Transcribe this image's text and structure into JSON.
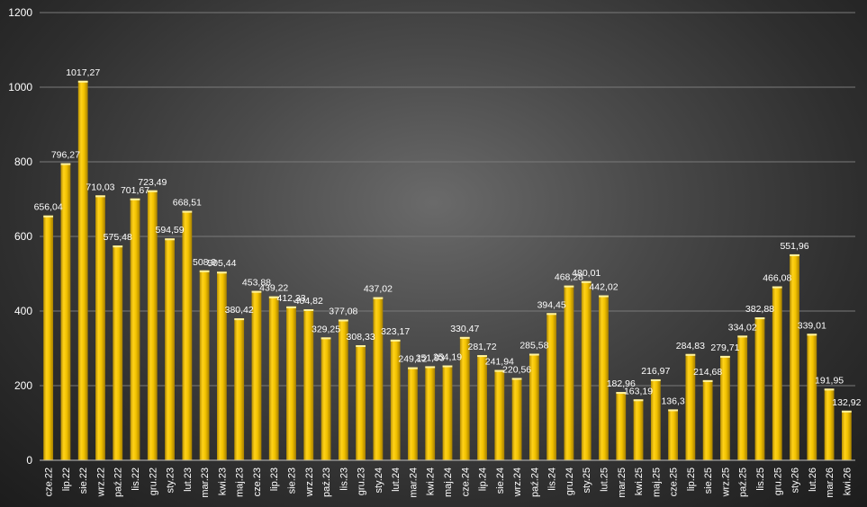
{
  "chart_data": {
    "type": "bar",
    "title": "",
    "xlabel": "",
    "ylabel": "",
    "ylim": [
      0,
      1200
    ],
    "yticks": [
      0,
      200,
      400,
      600,
      800,
      1000,
      1200
    ],
    "grid": true,
    "legend": "none",
    "bar_color": "#f2c200",
    "categories": [
      "cze.22",
      "lip.22",
      "sie.22",
      "wrz.22",
      "paź.22",
      "lis.22",
      "gru.22",
      "sty.23",
      "lut.23",
      "mar.23",
      "kwi.23",
      "maj.23",
      "cze.23",
      "lip.23",
      "sie.23",
      "wrz.23",
      "paź.23",
      "lis.23",
      "gru.23",
      "sty.24",
      "lut.24",
      "mar.24",
      "kwi.24",
      "maj.24",
      "cze.24",
      "lip.24",
      "sie.24",
      "wrz.24",
      "paź.24",
      "lis.24",
      "gru.24",
      "sty.25",
      "lut.25",
      "mar.25",
      "kwi.25",
      "maj.25",
      "cze.25",
      "lip.25",
      "sie.25",
      "wrz.25",
      "paź.25",
      "lis.25",
      "gru.25",
      "sty.26",
      "lut.26",
      "mar.26",
      "kwi.26"
    ],
    "values": [
      656.04,
      796.27,
      1017.27,
      710.03,
      575.48,
      701.67,
      723.49,
      594.59,
      668.51,
      508.9,
      505.44,
      380.42,
      453.88,
      439.22,
      412.33,
      404.82,
      329.25,
      377.08,
      308.33,
      437.02,
      323.17,
      249.12,
      251.93,
      254.19,
      330.47,
      281.72,
      241.94,
      220.56,
      285.58,
      394.45,
      468.28,
      480.01,
      442.02,
      182.96,
      163.19,
      216.97,
      136.3,
      284.83,
      214.68,
      279.71,
      334.02,
      382.88,
      466.08,
      551.96,
      339.01,
      191.95,
      132.92
    ],
    "data_labels": [
      "656,04",
      "796,27",
      "1017,27",
      "710,03",
      "575,48",
      "701,67",
      "723,49",
      "594,59",
      "668,51",
      "508,9",
      "505,44",
      "380,42",
      "453,88",
      "439,22",
      "412,33",
      "404,82",
      "329,25",
      "377,08",
      "308,33",
      "437,02",
      "323,17",
      "249,12",
      "251,93",
      "254,19",
      "330,47",
      "281,72",
      "241,94",
      "220,56",
      "285,58",
      "394,45",
      "468,28",
      "480,01",
      "442,02",
      "182,96",
      "163,19",
      "216,97",
      "136,3",
      "284,83",
      "214,68",
      "279,71",
      "334,02",
      "382,88",
      "466,08",
      "551,96",
      "339,01",
      "191,95",
      "132,92"
    ]
  }
}
